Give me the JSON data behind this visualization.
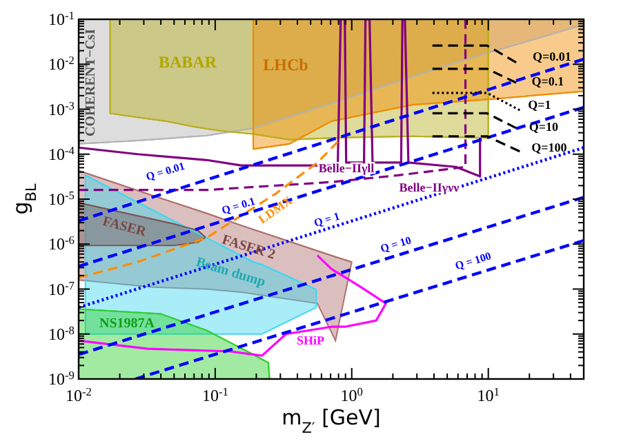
{
  "chart_data": {
    "type": "line",
    "xlabel": "m$_{Z′}$  [GeV]",
    "ylabel": "g$_{BL}$",
    "log": "xy",
    "xlim": [
      0.01,
      50
    ],
    "ylim": [
      1e-09,
      0.1
    ],
    "xticks": [
      {
        "value": 0.01,
        "label": "10$^{-2}$"
      },
      {
        "value": 0.02,
        "label": null
      },
      {
        "value": 0.03,
        "label": null
      },
      {
        "value": 0.04,
        "label": null
      },
      {
        "value": 0.05,
        "label": null
      },
      {
        "value": 0.06,
        "label": null
      },
      {
        "value": 0.07,
        "label": null
      },
      {
        "value": 0.08,
        "label": null
      },
      {
        "value": 0.09,
        "label": null
      },
      {
        "value": 0.1,
        "label": "10$^{-1}$"
      },
      {
        "value": 0.2,
        "label": null
      },
      {
        "value": 0.3,
        "label": null
      },
      {
        "value": 0.4,
        "label": null
      },
      {
        "value": 0.5,
        "label": null
      },
      {
        "value": 0.6,
        "label": null
      },
      {
        "value": 0.7,
        "label": null
      },
      {
        "value": 0.8,
        "label": null
      },
      {
        "value": 0.9,
        "label": null
      },
      {
        "value": 1,
        "label": "10$^{0}$"
      },
      {
        "value": 2,
        "label": null
      },
      {
        "value": 3,
        "label": null
      },
      {
        "value": 4,
        "label": null
      },
      {
        "value": 5,
        "label": null
      },
      {
        "value": 6,
        "label": null
      },
      {
        "value": 7,
        "label": null
      },
      {
        "value": 8,
        "label": null
      },
      {
        "value": 9,
        "label": null
      },
      {
        "value": 10,
        "label": "10$^{1}$"
      },
      {
        "value": 20,
        "label": null
      },
      {
        "value": 30,
        "label": null
      },
      {
        "value": 40,
        "label": null
      }
    ],
    "yticks": [
      {
        "value": 1e-09,
        "label": "10$^{-9}$"
      },
      {
        "value": 2e-09,
        "label": null
      },
      {
        "value": 3e-09,
        "label": null
      },
      {
        "value": 4e-09,
        "label": null
      },
      {
        "value": 5e-09,
        "label": null
      },
      {
        "value": 6e-09,
        "label": null
      },
      {
        "value": 7e-09,
        "label": null
      },
      {
        "value": 8e-09,
        "label": null
      },
      {
        "value": 9e-09,
        "label": null
      },
      {
        "value": 1e-08,
        "label": "10$^{-8}$"
      },
      {
        "value": 2e-08,
        "label": null
      },
      {
        "value": 3e-08,
        "label": null
      },
      {
        "value": 4e-08,
        "label": null
      },
      {
        "value": 5e-08,
        "label": null
      },
      {
        "value": 6e-08,
        "label": null
      },
      {
        "value": 7e-08,
        "label": null
      },
      {
        "value": 8e-08,
        "label": null
      },
      {
        "value": 9e-08,
        "label": null
      },
      {
        "value": 1e-07,
        "label": "10$^{-7}$"
      },
      {
        "value": 2e-07,
        "label": null
      },
      {
        "value": 3e-07,
        "label": null
      },
      {
        "value": 4e-07,
        "label": null
      },
      {
        "value": 5e-07,
        "label": null
      },
      {
        "value": 6e-07,
        "label": null
      },
      {
        "value": 7e-07,
        "label": null
      },
      {
        "value": 8e-07,
        "label": null
      },
      {
        "value": 9e-07,
        "label": null
      },
      {
        "value": 1e-06,
        "label": "10$^{-6}$"
      },
      {
        "value": 2e-06,
        "label": null
      },
      {
        "value": 3e-06,
        "label": null
      },
      {
        "value": 4e-06,
        "label": null
      },
      {
        "value": 5e-06,
        "label": null
      },
      {
        "value": 6e-06,
        "label": null
      },
      {
        "value": 7e-06,
        "label": null
      },
      {
        "value": 8e-06,
        "label": null
      },
      {
        "value": 9e-06,
        "label": null
      },
      {
        "value": 1e-05,
        "label": "10$^{-5}$"
      },
      {
        "value": 2e-05,
        "label": null
      },
      {
        "value": 3e-05,
        "label": null
      },
      {
        "value": 4e-05,
        "label": null
      },
      {
        "value": 5e-05,
        "label": null
      },
      {
        "value": 6e-05,
        "label": null
      },
      {
        "value": 7e-05,
        "label": null
      },
      {
        "value": 8e-05,
        "label": null
      },
      {
        "value": 9e-05,
        "label": null
      },
      {
        "value": 0.0001,
        "label": "10$^{-4}$"
      },
      {
        "value": 0.0002,
        "label": null
      },
      {
        "value": 0.0003,
        "label": null
      },
      {
        "value": 0.0004,
        "label": null
      },
      {
        "value": 0.0005,
        "label": null
      },
      {
        "value": 0.0006,
        "label": null
      },
      {
        "value": 0.0007,
        "label": null
      },
      {
        "value": 0.0008,
        "label": null
      },
      {
        "value": 0.0009,
        "label": null
      },
      {
        "value": 0.001,
        "label": "10$^{-3}$"
      },
      {
        "value": 0.002,
        "label": null
      },
      {
        "value": 0.003,
        "label": null
      },
      {
        "value": 0.004,
        "label": null
      },
      {
        "value": 0.005,
        "label": null
      },
      {
        "value": 0.006,
        "label": null
      },
      {
        "value": 0.007,
        "label": null
      },
      {
        "value": 0.008,
        "label": null
      },
      {
        "value": 0.009,
        "label": null
      },
      {
        "value": 0.01,
        "label": "10$^{-2}$"
      },
      {
        "value": 0.02,
        "label": null
      },
      {
        "value": 0.03,
        "label": null
      },
      {
        "value": 0.04,
        "label": null
      },
      {
        "value": 0.05,
        "label": null
      },
      {
        "value": 0.06,
        "label": null
      },
      {
        "value": 0.07,
        "label": null
      },
      {
        "value": 0.08,
        "label": null
      },
      {
        "value": 0.09,
        "label": null
      },
      {
        "value": 0.1,
        "label": "10$^{-1}$"
      }
    ],
    "series": [
      {
        "color": "#b4b4b4",
        "x": [
          0.01,
          0.027,
          0.087,
          0.19,
          0.71,
          5.8,
          50
        ],
        "values": [
          0.00017,
          0.0002,
          0.00026,
          0.00038,
          0.00135,
          0.011,
          0.076
        ],
        "lower": [
          0.00017,
          0.0002,
          0.00026,
          0.00038,
          0.00135,
          0.011,
          0.076
        ],
        "upper": [
          0.1,
          0.1,
          0.1,
          0.1,
          0.1,
          0.1,
          0.1
        ]
      },
      {
        "color": "#b8b020",
        "x": [
          0.017,
          0.017,
          0.027,
          0.044,
          0.069,
          0.11,
          0.19,
          0.35,
          0.71,
          2.8,
          10,
          10
        ],
        "values": [
          0.1,
          0.00081,
          0.00066,
          0.00054,
          0.00041,
          0.00033,
          0.00028,
          0.00021,
          0.00023,
          0.00025,
          0.00023,
          0.1
        ],
        "lower": [
          0.1,
          0.00081,
          0.00066,
          0.00054,
          0.00041,
          0.00033,
          0.00028,
          0.00021,
          0.00023,
          0.00025,
          0.00023,
          0.1
        ],
        "upper": [
          0.1,
          0.1,
          0.1,
          0.1,
          0.1,
          0.1,
          0.1,
          0.1,
          0.1,
          0.1,
          0.1,
          0.1
        ]
      },
      {
        "color": "#f08c00",
        "x": [
          0.19,
          0.19,
          0.35,
          0.71,
          2.8,
          10,
          50
        ],
        "values": [
          0.1,
          0.00013,
          0.00017,
          0.00054,
          0.00126,
          0.00166,
          0.0025
        ],
        "lower": [
          0.1,
          0.00013,
          0.00017,
          0.00054,
          0.00126,
          0.00166,
          0.0025
        ],
        "upper": [
          0.1,
          0.1,
          0.1,
          0.1,
          0.1,
          0.1,
          0.1
        ]
      },
      {
        "color": "#b07070",
        "x": [
          0.01,
          0.035,
          0.087,
          0.155,
          0.56,
          0.76,
          1.0
        ],
        "values": [
          4.3e-05,
          1.2e-05,
          4.8e-06,
          2.6e-06,
          7.1e-07,
          5.2e-07,
          4e-07
        ],
        "lower": [
          1.6e-07,
          1.1e-07,
          1e-07,
          8.5e-08,
          4.8e-08,
          7.1e-09,
          4e-07
        ],
        "upper": [
          4.3e-05,
          1.2e-05,
          4.8e-06,
          2.6e-06,
          7.1e-07,
          5.2e-07,
          4e-07
        ]
      },
      {
        "color": "#40d8f0",
        "x": [
          0.0112,
          0.19,
          0.22,
          0.55
        ],
        "values": [
          3.4e-05,
          4e-07,
          3.5e-07,
          9.8e-08
        ],
        "lower": [
          1e-08,
          1e-08,
          1e-08,
          3.9e-08
        ],
        "upper": [
          3.4e-05,
          4e-07,
          3.5e-07,
          9.8e-08
        ]
      },
      {
        "color": "#7a5a5a",
        "x": [
          0.01,
          0.05,
          0.075,
          0.085
        ],
        "values": [
          8.3e-06,
          2.8e-06,
          2e-06,
          1.4e-06
        ],
        "lower": [
          9.3e-07,
          9.3e-07,
          1.1e-06,
          1.4e-06
        ],
        "upper": [
          8.3e-06,
          2.8e-06,
          2e-06,
          1.4e-06
        ]
      },
      {
        "color": "#30d030",
        "x": [
          0.01,
          0.04,
          0.087,
          0.19,
          0.245,
          0.25
        ],
        "values": [
          3.6e-08,
          2.8e-08,
          1.2e-08,
          3.5e-09,
          2.3e-09,
          1e-09
        ],
        "lower": [
          1e-09,
          1e-09,
          1e-09,
          1e-09,
          1e-09,
          1e-09
        ],
        "upper": [
          3.6e-08,
          2.8e-08,
          1.2e-08,
          3.5e-09,
          2.3e-09,
          1e-09
        ]
      },
      {
        "color": "#ff00ff",
        "line_style": "solid",
        "x": [
          0.01,
          0.032,
          0.129,
          0.22,
          0.33,
          0.71,
          0.89,
          1.51,
          1.78,
          1.12,
          0.71,
          0.56
        ],
        "values": [
          7.1e-09,
          4.7e-09,
          4.1e-09,
          3.3e-09,
          1e-08,
          1.45e-08,
          1.45e-08,
          2e-08,
          4.8e-08,
          1.2e-07,
          2.8e-07,
          5.6e-07
        ]
      },
      {
        "color": "#800080",
        "line_style": "solid",
        "x": [
          0.01,
          0.01,
          0.027,
          0.087,
          0.155,
          0.79,
          0.83,
          0.89,
          0.91,
          1.23,
          1.26,
          1.35,
          1.42,
          2.3,
          2.35,
          2.45,
          2.6,
          5.8,
          8.7,
          8.7
        ],
        "values": [
          0.00095,
          0.00014,
          0.0001,
          7.4e-05,
          5.6e-05,
          5.6e-05,
          0.1,
          0.1,
          6.5e-05,
          6.5e-05,
          0.1,
          0.1,
          6.5e-05,
          6.5e-05,
          0.1,
          0.1,
          6.5e-05,
          5.2e-05,
          3.2e-05,
          0.00023
        ]
      },
      {
        "color": "#800080",
        "line_style": "dashed",
        "x": [
          0.01,
          0.087,
          0.71,
          2.2,
          6.8,
          6.8
        ],
        "values": [
          1.6e-05,
          1.6e-05,
          2.4e-05,
          3.4e-05,
          5.2e-05,
          0.1
        ]
      },
      {
        "color": "#ff8c00",
        "line_style": "dashed",
        "x": [
          0.01,
          0.027,
          0.087,
          0.28,
          0.56,
          0.79
        ],
        "values": [
          1.8e-07,
          4e-07,
          1.4e-06,
          1.35e-05,
          6.5e-05,
          0.00019
        ]
      },
      {
        "color": "#0000ff",
        "line_style": "dashed",
        "x": [
          0.01,
          50
        ],
        "values": [
          3.3e-06,
          0.013
        ]
      },
      {
        "color": "#0000ff",
        "line_style": "dashed",
        "x": [
          0.01,
          50
        ],
        "values": [
          3.2e-07,
          0.0011
        ]
      },
      {
        "color": "#0000ff",
        "line_style": "dotted",
        "x": [
          0.01,
          50
        ],
        "values": [
          3.9e-08,
          0.00014
        ]
      },
      {
        "color": "#0000ff",
        "line_style": "dashed",
        "x": [
          0.01,
          50
        ],
        "values": [
          3.5e-09,
          1.1e-05
        ]
      },
      {
        "color": "#0000ff",
        "line_style": "dashed",
        "x": [
          0.026,
          50
        ],
        "values": [
          1e-09,
          1.2e-06
        ]
      },
      {
        "color": "#000000",
        "line_style": "dashed",
        "x": [
          3.9,
          9.8,
          16
        ],
        "values": [
          0.026,
          0.026,
          0.011
        ]
      },
      {
        "color": "#000000",
        "line_style": "dashed",
        "x": [
          3.9,
          9.8,
          16
        ],
        "values": [
          0.0079,
          0.0079,
          0.0039
        ]
      },
      {
        "color": "#000000",
        "line_style": "dotted",
        "x": [
          3.9,
          9.8,
          17
        ],
        "values": [
          0.0023,
          0.0023,
          0.00095
        ]
      },
      {
        "color": "#000000",
        "line_style": "dashed",
        "x": [
          3.9,
          9.8,
          16
        ],
        "values": [
          0.00081,
          0.00081,
          0.00038
        ]
      },
      {
        "color": "#000000",
        "line_style": "dashed",
        "x": [
          3.9,
          9.8,
          17
        ],
        "values": [
          0.00025,
          0.00025,
          0.000115
        ]
      }
    ],
    "annotations": [
      "COHERENT−CsI",
      "BABAR",
      "LHCb",
      "Belle−IIγll",
      "Belle−IIγνν",
      "Q=0.01",
      "Q=0.1",
      "Q=1",
      "Q=10",
      "Q=100",
      "Q = 0.01",
      "Q = 0.1",
      "LDMX",
      "Q = 1",
      "FASER",
      "FASER 2",
      "Beam dump",
      "NS1987A",
      "SHiP",
      "Q = 10",
      "Q = 100"
    ]
  }
}
